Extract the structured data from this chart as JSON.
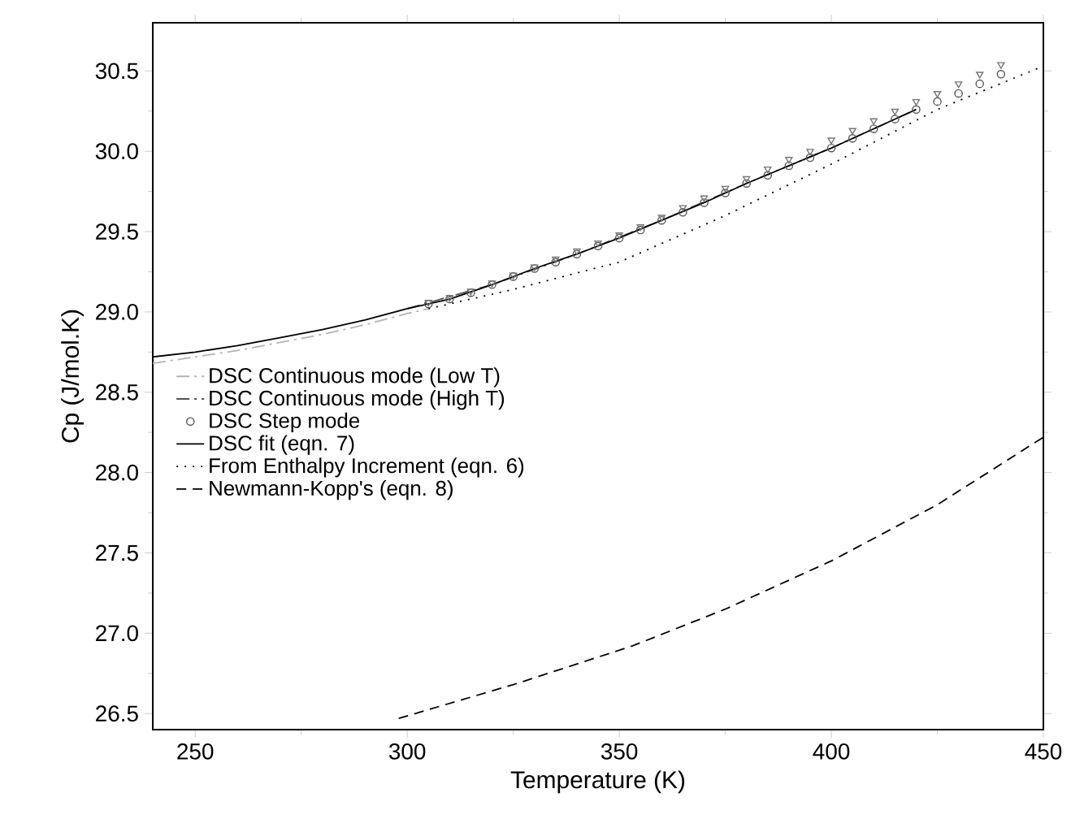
{
  "chart_data": {
    "type": "line",
    "xlabel": "Temperature (K)",
    "ylabel": "Cp (J/mol.K)",
    "xlim": [
      240,
      450
    ],
    "ylim": [
      26.4,
      30.8
    ],
    "xticks": [
      250,
      300,
      350,
      400,
      450
    ],
    "yticks": [
      26.5,
      {
        "value": 27,
        "label": "27.0"
      },
      27.5,
      {
        "value": 28,
        "label": "28.0"
      },
      28.5,
      {
        "value": 29,
        "label": "29.0"
      },
      29.5,
      {
        "value": 30,
        "label": "30.0"
      },
      30.5
    ],
    "legend": "left",
    "grid": false,
    "series": [
      {
        "name": "DSC Continuous mode (Low T)",
        "line_style": "dashdot",
        "marker": "none",
        "color": "#b4b4b4",
        "x": [
          240,
          250,
          260,
          270,
          280,
          290,
          300,
          305
        ],
        "values": [
          28.68,
          28.72,
          28.76,
          28.81,
          28.86,
          28.92,
          28.99,
          29.02
        ]
      },
      {
        "name": "DSC Continuous mode (High T)",
        "line_style": "dashdot",
        "marker": "none",
        "color": "#555555",
        "x": [
          300,
          320,
          340,
          360,
          380,
          400,
          420
        ],
        "values": [
          29.02,
          29.17,
          29.36,
          29.57,
          29.8,
          30.02,
          30.26
        ]
      },
      {
        "name": "DSC Step mode",
        "type": "scatter",
        "marker": "circle",
        "color": "#555555",
        "x": [
          305,
          310,
          315,
          320,
          325,
          330,
          335,
          340,
          345,
          350,
          355,
          360,
          365,
          370,
          375,
          380,
          385,
          390,
          395,
          400,
          405,
          410,
          415,
          420,
          425,
          430,
          435,
          440
        ],
        "values": [
          29.05,
          29.08,
          29.12,
          29.17,
          29.22,
          29.27,
          29.31,
          29.36,
          29.41,
          29.46,
          29.51,
          29.57,
          29.62,
          29.68,
          29.74,
          29.8,
          29.85,
          29.91,
          29.96,
          30.02,
          30.08,
          30.14,
          30.2,
          30.26,
          30.31,
          30.36,
          30.42,
          30.48
        ]
      },
      {
        "type": "scatter",
        "marker": "triangle",
        "color": "#777777",
        "x": [
          305,
          310,
          315,
          320,
          325,
          330,
          335,
          340,
          345,
          350,
          355,
          360,
          365,
          370,
          375,
          380,
          385,
          390,
          395,
          400,
          405,
          410,
          415,
          420,
          425,
          430,
          435,
          440
        ],
        "values": [
          29.06,
          29.09,
          29.13,
          29.18,
          29.23,
          29.28,
          29.33,
          29.38,
          29.43,
          29.48,
          29.53,
          29.59,
          29.65,
          29.71,
          29.77,
          29.83,
          29.89,
          29.95,
          30.0,
          30.07,
          30.13,
          30.19,
          30.25,
          30.31,
          30.36,
          30.42,
          30.48,
          30.54
        ]
      },
      {
        "name": "DSC fit (eqn. 7)",
        "line_style": "solid",
        "marker": "none",
        "color": "#000000",
        "x": [
          240,
          250,
          260,
          270,
          280,
          290,
          300,
          310,
          320,
          330,
          340,
          350,
          360,
          370,
          380,
          390,
          400,
          410,
          420
        ],
        "values": [
          28.72,
          28.75,
          28.79,
          28.84,
          28.89,
          28.95,
          29.02,
          29.08,
          29.17,
          29.27,
          29.36,
          29.46,
          29.57,
          29.68,
          29.8,
          29.91,
          30.02,
          30.14,
          30.26
        ]
      },
      {
        "name": "From Enthalpy Increment (eqn. 6)",
        "line_style": "dotted",
        "marker": "none",
        "color": "#000000",
        "x": [
          305,
          325,
          350,
          375,
          400,
          425,
          450
        ],
        "values": [
          29.02,
          29.14,
          29.31,
          29.6,
          29.92,
          30.26,
          30.53
        ]
      },
      {
        "name": "Newmann-Kopp's (eqn. 8)",
        "line_style": "dashed",
        "marker": "none",
        "color": "#000000",
        "x": [
          298,
          325,
          353,
          375,
          400,
          425,
          450
        ],
        "values": [
          26.47,
          26.68,
          26.92,
          27.15,
          27.45,
          27.8,
          28.22
        ]
      }
    ]
  }
}
